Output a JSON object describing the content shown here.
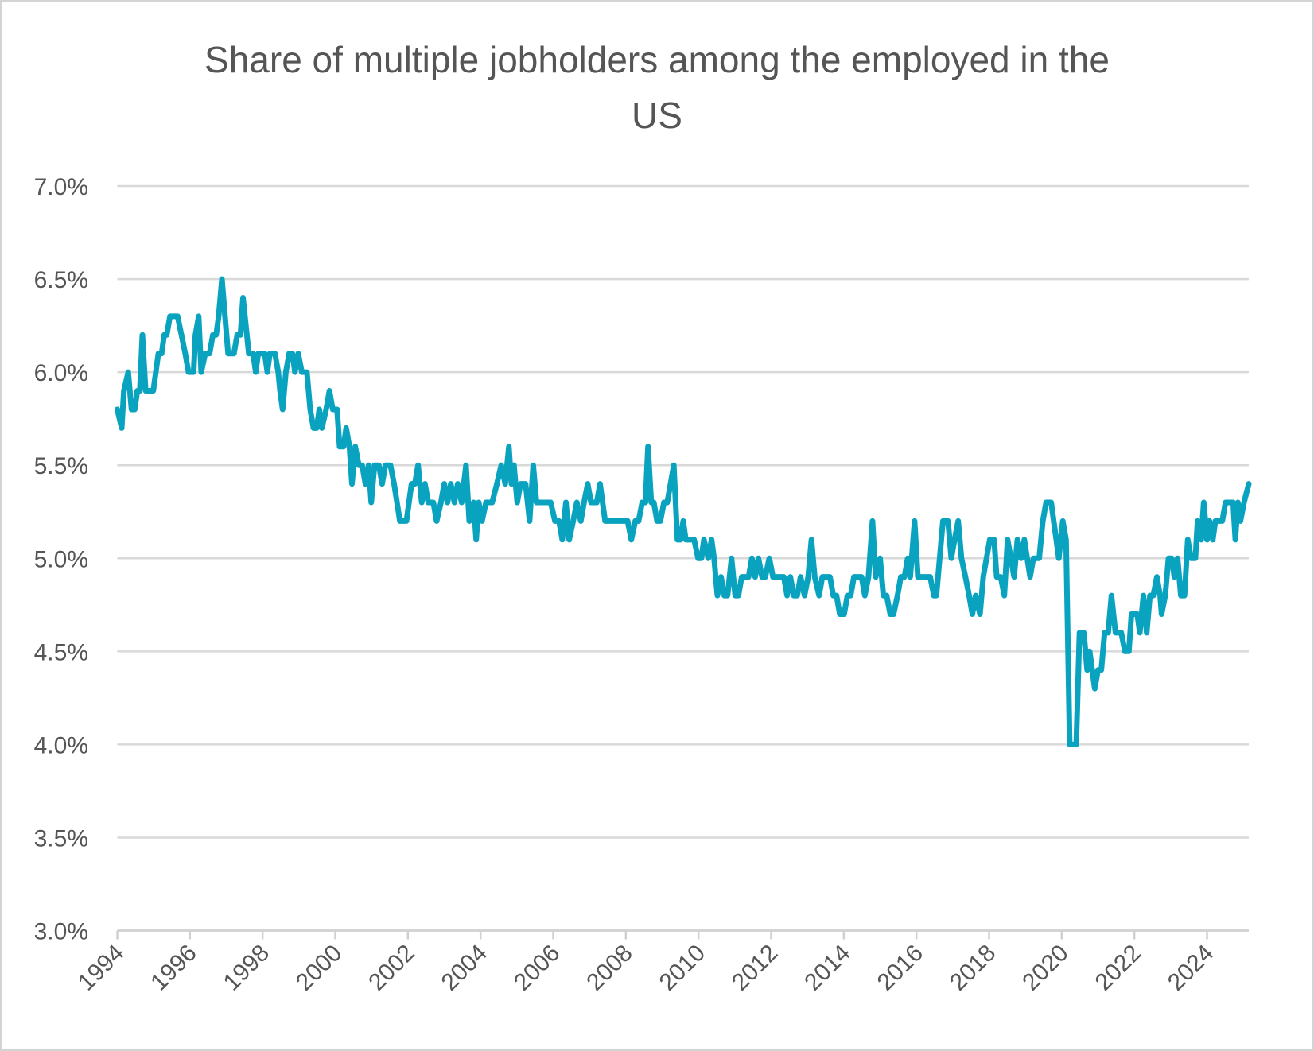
{
  "chart_data": {
    "type": "line",
    "title": "Share of multiple jobholders among the employed in the US",
    "xlim": [
      1994,
      2025.15
    ],
    "xticks": [
      1994,
      1996,
      1998,
      2000,
      2002,
      2004,
      2006,
      2008,
      2010,
      2012,
      2014,
      2016,
      2018,
      2020,
      2022,
      2024
    ],
    "ylim": [
      3,
      7
    ],
    "yticks": [
      {
        "value": 3,
        "label": "3.0%"
      },
      {
        "value": 3.5,
        "label": "3.5%"
      },
      {
        "value": 4,
        "label": "4.0%"
      },
      {
        "value": 4.5,
        "label": "4.5%"
      },
      {
        "value": 5,
        "label": "5.0%"
      },
      {
        "value": 5.5,
        "label": "5.5%"
      },
      {
        "value": 6,
        "label": "6.0%"
      },
      {
        "value": 6.5,
        "label": "6.5%"
      },
      {
        "value": 7,
        "label": "7.0%"
      }
    ],
    "grid": true,
    "color": "#0aa3bf",
    "x": [
      1994.0,
      1994.12,
      1994.18,
      1994.3,
      1994.39,
      1994.48,
      1994.55,
      1994.62,
      1994.69,
      1994.78,
      1994.92,
      1994.99,
      1995.13,
      1995.22,
      1995.29,
      1995.36,
      1995.45,
      1995.66,
      1995.87,
      1995.96,
      1996.1,
      1996.15,
      1996.24,
      1996.31,
      1996.42,
      1996.54,
      1996.63,
      1996.72,
      1996.79,
      1996.88,
      1997.05,
      1997.21,
      1997.3,
      1997.39,
      1997.46,
      1997.62,
      1997.74,
      1997.81,
      1997.88,
      1998.06,
      1998.13,
      1998.2,
      1998.34,
      1998.43,
      1998.48,
      1998.55,
      1998.64,
      1998.73,
      1998.82,
      1998.89,
      1998.98,
      1999.08,
      1999.22,
      1999.31,
      1999.4,
      1999.49,
      1999.56,
      1999.63,
      1999.75,
      1999.84,
      1999.93,
      2000.05,
      2000.12,
      2000.23,
      2000.3,
      2000.39,
      2000.46,
      2000.55,
      2000.65,
      2000.74,
      2000.83,
      2000.92,
      2000.99,
      2001.08,
      2001.2,
      2001.29,
      2001.38,
      2001.52,
      2001.62,
      2001.78,
      2001.96,
      2002.1,
      2002.19,
      2002.28,
      2002.38,
      2002.47,
      2002.56,
      2002.7,
      2002.79,
      2002.91,
      2003.0,
      2003.09,
      2003.18,
      2003.28,
      2003.37,
      2003.48,
      2003.6,
      2003.69,
      2003.81,
      2003.88,
      2003.95,
      2004.04,
      2004.15,
      2004.32,
      2004.45,
      2004.57,
      2004.68,
      2004.78,
      2004.85,
      2004.92,
      2005.01,
      2005.1,
      2005.24,
      2005.35,
      2005.45,
      2005.54,
      2005.93,
      2006.05,
      2006.16,
      2006.25,
      2006.35,
      2006.44,
      2006.55,
      2006.65,
      2006.76,
      2006.85,
      2006.95,
      2007.04,
      2007.2,
      2007.29,
      2007.43,
      2007.96,
      2008.05,
      2008.15,
      2008.26,
      2008.35,
      2008.45,
      2008.54,
      2008.61,
      2008.7,
      2008.77,
      2008.86,
      2008.95,
      2009.05,
      2009.14,
      2009.23,
      2009.32,
      2009.42,
      2009.51,
      2009.58,
      2009.65,
      2009.88,
      2009.99,
      2010.08,
      2010.15,
      2010.27,
      2010.36,
      2010.43,
      2010.52,
      2010.62,
      2010.71,
      2010.8,
      2010.91,
      2011.01,
      2011.1,
      2011.19,
      2011.28,
      2011.38,
      2011.47,
      2011.56,
      2011.65,
      2011.75,
      2011.84,
      2011.95,
      2012.05,
      2012.35,
      2012.44,
      2012.53,
      2012.62,
      2012.72,
      2012.81,
      2012.92,
      2013.02,
      2013.11,
      2013.2,
      2013.32,
      2013.41,
      2013.62,
      2013.71,
      2013.8,
      2013.89,
      2014.01,
      2014.1,
      2014.19,
      2014.28,
      2014.49,
      2014.58,
      2014.68,
      2014.79,
      2014.88,
      2015.0,
      2015.09,
      2015.18,
      2015.28,
      2015.37,
      2015.48,
      2015.57,
      2015.67,
      2015.76,
      2015.83,
      2015.95,
      2016.04,
      2016.38,
      2016.48,
      2016.55,
      2016.64,
      2016.73,
      2016.87,
      2016.96,
      2017.05,
      2017.15,
      2017.24,
      2017.35,
      2017.45,
      2017.54,
      2017.63,
      2017.75,
      2017.84,
      2017.93,
      2018.02,
      2018.14,
      2018.21,
      2018.32,
      2018.42,
      2018.51,
      2018.6,
      2018.69,
      2018.78,
      2018.88,
      2018.97,
      2019.13,
      2019.22,
      2019.38,
      2019.48,
      2019.57,
      2019.71,
      2019.92,
      2020.03,
      2020.12,
      2020.22,
      2020.4,
      2020.49,
      2020.61,
      2020.7,
      2020.77,
      2020.84,
      2020.91,
      2021.0,
      2021.09,
      2021.18,
      2021.28,
      2021.37,
      2021.48,
      2021.64,
      2021.74,
      2021.85,
      2021.92,
      2022.08,
      2022.15,
      2022.25,
      2022.34,
      2022.43,
      2022.52,
      2022.62,
      2022.71,
      2022.75,
      2022.85,
      2022.94,
      2023.03,
      2023.1,
      2023.19,
      2023.28,
      2023.38,
      2023.47,
      2023.56,
      2023.68,
      2023.74,
      2023.84,
      2023.91,
      2024.0,
      2024.07,
      2024.16,
      2024.23,
      2024.42,
      2024.51,
      2024.65,
      2024.72,
      2024.78,
      2024.85,
      2024.92,
      2025.02,
      2025.15
    ],
    "values": [
      5.8,
      5.7,
      5.9,
      6.0,
      5.8,
      5.8,
      5.9,
      5.9,
      6.2,
      5.9,
      5.9,
      5.9,
      6.1,
      6.1,
      6.2,
      6.2,
      6.3,
      6.3,
      6.1,
      6.0,
      6.0,
      6.2,
      6.3,
      6.0,
      6.1,
      6.1,
      6.2,
      6.2,
      6.3,
      6.5,
      6.1,
      6.1,
      6.2,
      6.2,
      6.4,
      6.1,
      6.1,
      6.0,
      6.1,
      6.1,
      6.0,
      6.1,
      6.1,
      6.0,
      5.9,
      5.8,
      6.0,
      6.1,
      6.1,
      6.0,
      6.1,
      6.0,
      6.0,
      5.8,
      5.7,
      5.7,
      5.8,
      5.7,
      5.8,
      5.9,
      5.8,
      5.8,
      5.6,
      5.6,
      5.7,
      5.6,
      5.4,
      5.6,
      5.5,
      5.5,
      5.4,
      5.5,
      5.3,
      5.5,
      5.5,
      5.4,
      5.5,
      5.5,
      5.4,
      5.2,
      5.2,
      5.4,
      5.4,
      5.5,
      5.3,
      5.4,
      5.3,
      5.3,
      5.2,
      5.3,
      5.4,
      5.3,
      5.4,
      5.3,
      5.4,
      5.3,
      5.5,
      5.2,
      5.3,
      5.1,
      5.3,
      5.2,
      5.3,
      5.3,
      5.4,
      5.5,
      5.4,
      5.6,
      5.4,
      5.5,
      5.3,
      5.4,
      5.4,
      5.2,
      5.5,
      5.3,
      5.3,
      5.2,
      5.2,
      5.1,
      5.3,
      5.1,
      5.2,
      5.3,
      5.2,
      5.3,
      5.4,
      5.3,
      5.3,
      5.4,
      5.2,
      5.2,
      5.2,
      5.1,
      5.2,
      5.2,
      5.3,
      5.3,
      5.6,
      5.3,
      5.3,
      5.2,
      5.2,
      5.3,
      5.3,
      5.4,
      5.5,
      5.1,
      5.1,
      5.2,
      5.1,
      5.1,
      5.0,
      5.0,
      5.1,
      5.0,
      5.1,
      5.0,
      4.8,
      4.9,
      4.8,
      4.8,
      5.0,
      4.8,
      4.8,
      4.9,
      4.9,
      4.9,
      5.0,
      4.9,
      5.0,
      4.9,
      4.9,
      5.0,
      4.9,
      4.9,
      4.8,
      4.9,
      4.8,
      4.8,
      4.9,
      4.8,
      4.9,
      5.1,
      4.9,
      4.8,
      4.9,
      4.9,
      4.8,
      4.8,
      4.7,
      4.7,
      4.8,
      4.8,
      4.9,
      4.9,
      4.8,
      4.9,
      5.2,
      4.9,
      5.0,
      4.8,
      4.8,
      4.7,
      4.7,
      4.8,
      4.9,
      4.9,
      5.0,
      4.9,
      5.2,
      4.9,
      4.9,
      4.8,
      4.8,
      5.0,
      5.2,
      5.2,
      5.0,
      5.1,
      5.2,
      5.0,
      4.9,
      4.8,
      4.7,
      4.8,
      4.7,
      4.9,
      5.0,
      5.1,
      5.1,
      4.9,
      4.9,
      4.8,
      5.1,
      5.0,
      4.9,
      5.1,
      5.0,
      5.1,
      4.9,
      5.0,
      5.0,
      5.2,
      5.3,
      5.3,
      5.0,
      5.2,
      5.1,
      4.0,
      4.0,
      4.6,
      4.6,
      4.4,
      4.5,
      4.4,
      4.3,
      4.4,
      4.4,
      4.6,
      4.6,
      4.8,
      4.6,
      4.6,
      4.5,
      4.5,
      4.7,
      4.7,
      4.6,
      4.8,
      4.6,
      4.8,
      4.8,
      4.9,
      4.8,
      4.7,
      4.8,
      5.0,
      5.0,
      4.9,
      5.0,
      4.8,
      4.8,
      5.1,
      5.0,
      5.0,
      5.2,
      5.1,
      5.3,
      5.1,
      5.2,
      5.1,
      5.2,
      5.2,
      5.3,
      5.3,
      5.3,
      5.1,
      5.3,
      5.2,
      5.3,
      5.4
    ]
  }
}
